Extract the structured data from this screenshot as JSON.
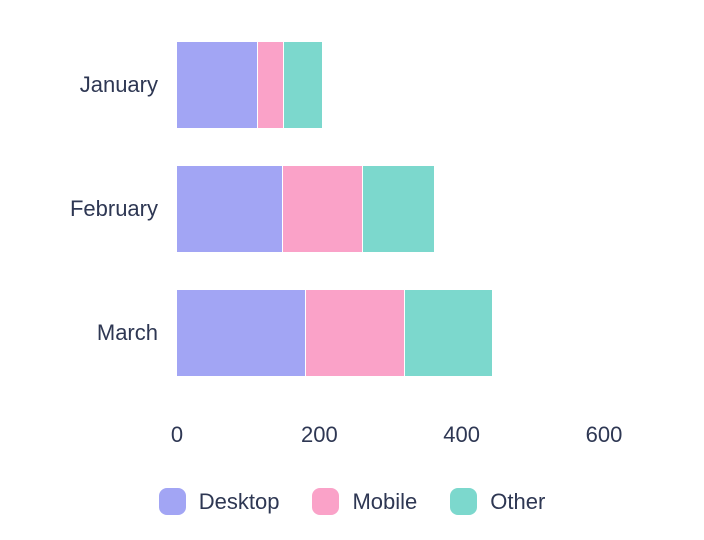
{
  "chart_data": {
    "type": "bar",
    "orientation": "horizontal",
    "stacked": true,
    "title": "",
    "categories": [
      "January",
      "February",
      "March"
    ],
    "series": [
      {
        "name": "Desktop",
        "color": "#a2a5f4",
        "values": [
          114,
          149,
          181
        ]
      },
      {
        "name": "Mobile",
        "color": "#faa2c8",
        "values": [
          37,
          112,
          139
        ]
      },
      {
        "name": "Other",
        "color": "#7cd8cd",
        "values": [
          53,
          100,
          123
        ]
      }
    ],
    "xlabel": "",
    "ylabel": "",
    "xlim": [
      0,
      600
    ],
    "x_ticks": [
      "0",
      "200",
      "400",
      "600"
    ],
    "x_tick_values": [
      0,
      200,
      400,
      600
    ],
    "grid": false,
    "legend_position": "bottom",
    "text_color": "#2e3753",
    "background_color": "#ffffff"
  }
}
